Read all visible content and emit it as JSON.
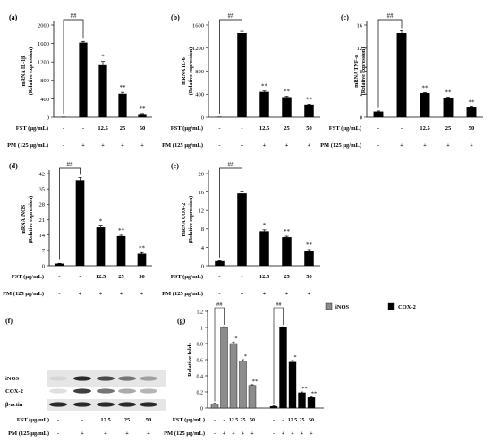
{
  "chart_data": [
    {
      "panel": "(a)",
      "type": "bar",
      "ylabel_lines": [
        "mRNA IL-1β",
        "(Relative expression)"
      ],
      "ylim": [
        0,
        2000
      ],
      "yticks": [
        "0",
        "400",
        "800",
        "1200",
        "1600",
        "2000"
      ],
      "values": [
        2,
        1620,
        1130,
        510,
        70
      ],
      "errors": [
        2,
        25,
        80,
        30,
        10
      ],
      "sig": [
        "",
        "",
        "*",
        "**",
        "**"
      ],
      "hash": "##",
      "fst": [
        "-",
        "-",
        "12.5",
        "25",
        "50"
      ],
      "pm": [
        "-",
        "+",
        "+",
        "+",
        "+"
      ],
      "fst_label": "FST (μg/mL)",
      "pm_label": "PM (125 μg/mL)"
    },
    {
      "panel": "(b)",
      "type": "bar",
      "ylabel_lines": [
        "mRNA IL-6",
        "(Relative expression)"
      ],
      "ylim": [
        0,
        1600
      ],
      "yticks": [
        "0",
        "400",
        "800",
        "1200",
        "1600"
      ],
      "values": [
        2,
        1460,
        440,
        350,
        220
      ],
      "errors": [
        2,
        30,
        15,
        12,
        8
      ],
      "sig": [
        "",
        "",
        "**",
        "**",
        "**"
      ],
      "hash": "##",
      "fst": [
        "-",
        "-",
        "12.5",
        "25",
        "50"
      ],
      "pm": [
        "-",
        "+",
        "+",
        "+",
        "+"
      ],
      "fst_label": "FST (μg/mL)",
      "pm_label": "PM (125 μg/mL)"
    },
    {
      "panel": "(c)",
      "type": "bar",
      "ylabel_lines": [
        "mRNA TNF-α",
        "(Relative expression)"
      ],
      "ylim": [
        0,
        16
      ],
      "yticks": [
        "0",
        "4",
        "8",
        "12",
        "16"
      ],
      "values": [
        1,
        14.6,
        4.2,
        3.4,
        1.7
      ],
      "errors": [
        0.1,
        0.4,
        0.1,
        0.1,
        0.1
      ],
      "sig": [
        "",
        "",
        "**",
        "**",
        "**"
      ],
      "hash": "##",
      "fst": [
        "-",
        "-",
        "12.5",
        "25",
        "50"
      ],
      "pm": [
        "-",
        "+",
        "+",
        "+",
        "+"
      ],
      "fst_label": "FST (μg/mL)",
      "pm_label": "PM (125 μg/mL)"
    },
    {
      "panel": "(d)",
      "type": "bar",
      "ylabel_lines": [
        "mRNA iNOS",
        "(Relative expression)"
      ],
      "ylim": [
        0,
        42
      ],
      "yticks": [
        "0",
        "7",
        "14",
        "21",
        "28",
        "35",
        "42"
      ],
      "values": [
        1,
        39,
        17.5,
        13.5,
        5.5
      ],
      "errors": [
        0.1,
        1.2,
        0.6,
        0.4,
        0.5
      ],
      "sig": [
        "",
        "",
        "*",
        "**",
        "**"
      ],
      "hash": "##",
      "fst": [
        "-",
        "-",
        "12.5",
        "25",
        "50"
      ],
      "pm": [
        "-",
        "+",
        "+",
        "+",
        "+"
      ],
      "fst_label": "FST (μg/mL)",
      "pm_label": "PM (125 μg/mL)"
    },
    {
      "panel": "(e)",
      "type": "bar",
      "ylabel_lines": [
        "mRNA COX-2",
        "(Relative expression)"
      ],
      "ylim": [
        0,
        20
      ],
      "yticks": [
        "0",
        "4",
        "8",
        "12",
        "16",
        "20"
      ],
      "values": [
        1,
        15.7,
        7.5,
        6.2,
        3.3
      ],
      "errors": [
        0.1,
        0.3,
        0.3,
        0.2,
        0.2
      ],
      "sig": [
        "",
        "",
        "*",
        "**",
        "**"
      ],
      "hash": "##",
      "fst": [
        "-",
        "-",
        "12.5",
        "25",
        "50"
      ],
      "pm": [
        "-",
        "+",
        "+",
        "+",
        "+"
      ],
      "fst_label": "FST (μg/mL)",
      "pm_label": "PM (125 μg/mL)"
    },
    {
      "panel": "(g)",
      "type": "bar",
      "ylabel_lines": [
        "Relative folds"
      ],
      "ylim": [
        0,
        1.2
      ],
      "yticks": [
        "0",
        "0.2",
        "0.4",
        "0.6",
        "0.8",
        "1",
        "1.2"
      ],
      "series": [
        {
          "name": "iNOS",
          "color": "#8c8c8c",
          "values": [
            0.05,
            1.0,
            0.8,
            0.58,
            0.28
          ],
          "errors": [
            0.01,
            0.01,
            0.02,
            0.02,
            0.01
          ],
          "sig": [
            "",
            "",
            "*",
            "*",
            "**"
          ]
        },
        {
          "name": "COX-2",
          "color": "#000000",
          "values": [
            0.02,
            1.0,
            0.57,
            0.19,
            0.13
          ],
          "errors": [
            0.01,
            0.01,
            0.02,
            0.01,
            0.01
          ],
          "sig": [
            "",
            "",
            "*",
            "**",
            "**"
          ]
        }
      ],
      "hash": "##",
      "fst": [
        "-",
        "-",
        "12.5",
        "25",
        "50"
      ],
      "pm": [
        "-",
        "+",
        "+",
        "+",
        "+"
      ],
      "fst_label": "FST (μg/mL)",
      "pm_label": "PM (125 μg/mL)"
    }
  ],
  "blot": {
    "panel": "(f)",
    "rows": [
      "iNOS",
      "COX-2",
      "β-actin"
    ],
    "fst_label": "FST (μg/mL)",
    "pm_label": "PM (125 μg/mL)",
    "fst": [
      "-",
      "-",
      "12.5",
      "25",
      "50"
    ],
    "pm": [
      "-",
      "+",
      "+",
      "+",
      "+"
    ],
    "intensities": [
      [
        0.1,
        0.9,
        0.75,
        0.55,
        0.35
      ],
      [
        0.05,
        0.8,
        0.55,
        0.3,
        0.25
      ],
      [
        0.9,
        0.9,
        0.9,
        0.9,
        0.9
      ]
    ]
  }
}
